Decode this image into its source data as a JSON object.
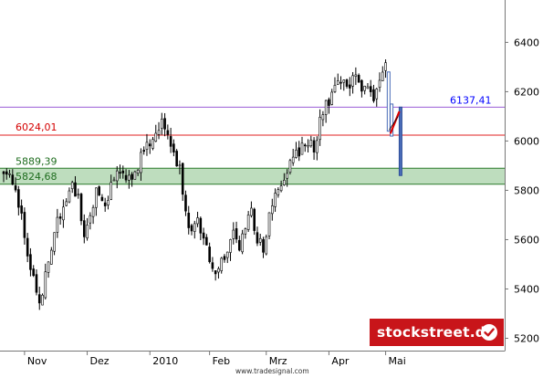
{
  "chart_data": {
    "type": "candlestick",
    "grid": false,
    "legend": "none",
    "y_axis": {
      "position": "right",
      "ylim": [
        5150,
        6520
      ],
      "ticks": [
        5200,
        5400,
        5600,
        5800,
        6000,
        6200,
        6400
      ],
      "tick_labels": [
        "5200",
        "5400",
        "5600",
        "5800",
        "6000",
        "6200",
        "6400"
      ]
    },
    "x_axis": {
      "tick_labels": [
        "Nov",
        "Dez",
        "2010",
        "Feb",
        "Mrz",
        "Apr",
        "Mai"
      ],
      "trading_days": 147,
      "tick_days": [
        7,
        28,
        49,
        69,
        88,
        109,
        128
      ]
    },
    "price_path": [
      [
        0,
        5870
      ],
      [
        3,
        5840
      ],
      [
        6,
        5700
      ],
      [
        9,
        5480
      ],
      [
        12,
        5340
      ],
      [
        14,
        5450
      ],
      [
        17,
        5630
      ],
      [
        20,
        5740
      ],
      [
        23,
        5830
      ],
      [
        25,
        5760
      ],
      [
        27,
        5600
      ],
      [
        29,
        5700
      ],
      [
        31,
        5800
      ],
      [
        34,
        5740
      ],
      [
        37,
        5850
      ],
      [
        40,
        5870
      ],
      [
        43,
        5840
      ],
      [
        46,
        5930
      ],
      [
        49,
        5990
      ],
      [
        51,
        6050
      ],
      [
        53,
        6080
      ],
      [
        55,
        6020
      ],
      [
        57,
        5960
      ],
      [
        59,
        5880
      ],
      [
        61,
        5700
      ],
      [
        63,
        5640
      ],
      [
        65,
        5680
      ],
      [
        67,
        5600
      ],
      [
        69,
        5520
      ],
      [
        71,
        5450
      ],
      [
        73,
        5500
      ],
      [
        75,
        5560
      ],
      [
        77,
        5620
      ],
      [
        79,
        5560
      ],
      [
        81,
        5640
      ],
      [
        83,
        5720
      ],
      [
        85,
        5600
      ],
      [
        87,
        5560
      ],
      [
        89,
        5690
      ],
      [
        91,
        5780
      ],
      [
        93,
        5830
      ],
      [
        96,
        5900
      ],
      [
        99,
        5960
      ],
      [
        102,
        6000
      ],
      [
        104,
        5960
      ],
      [
        106,
        6080
      ],
      [
        108,
        6140
      ],
      [
        111,
        6210
      ],
      [
        114,
        6250
      ],
      [
        116,
        6230
      ],
      [
        118,
        6270
      ],
      [
        120,
        6200
      ],
      [
        122,
        6230
      ],
      [
        124,
        6180
      ],
      [
        126,
        6270
      ],
      [
        128,
        6300
      ]
    ],
    "drop_bars": [
      {
        "day": 129,
        "high": 6280,
        "low": 6040
      },
      {
        "day": 130,
        "high": 6150,
        "low": 6020
      },
      {
        "day": 133,
        "high": 6137.41,
        "low": 5860
      }
    ],
    "levels": [
      {
        "value": 6137.41,
        "label": "6137,41",
        "color": "#0000ff",
        "line_color": "#9a5cd6"
      },
      {
        "value": 6024.01,
        "label": "6024,01",
        "color": "#d40000",
        "line_color": "#e02020"
      },
      {
        "value": 5889.39,
        "label": "5889,39",
        "color": "#1f6d1f",
        "line_color": "#2a7a2a"
      },
      {
        "value": 5824.68,
        "label": "5824,68",
        "color": "#1f6d1f",
        "line_color": "#2a7a2a"
      }
    ],
    "support_zone": {
      "from": 5824.68,
      "to": 5889.39,
      "fill": "#b7d9b7"
    },
    "colors": {
      "candles": "#000000",
      "last_bar": "#4a6cb8",
      "trend": "#e00000",
      "axis": "#777777"
    }
  },
  "credit": "www.tradesignal.com",
  "brand": {
    "text": "stockstreet.de",
    "icon": "check-icon",
    "color": "#c8151a"
  }
}
